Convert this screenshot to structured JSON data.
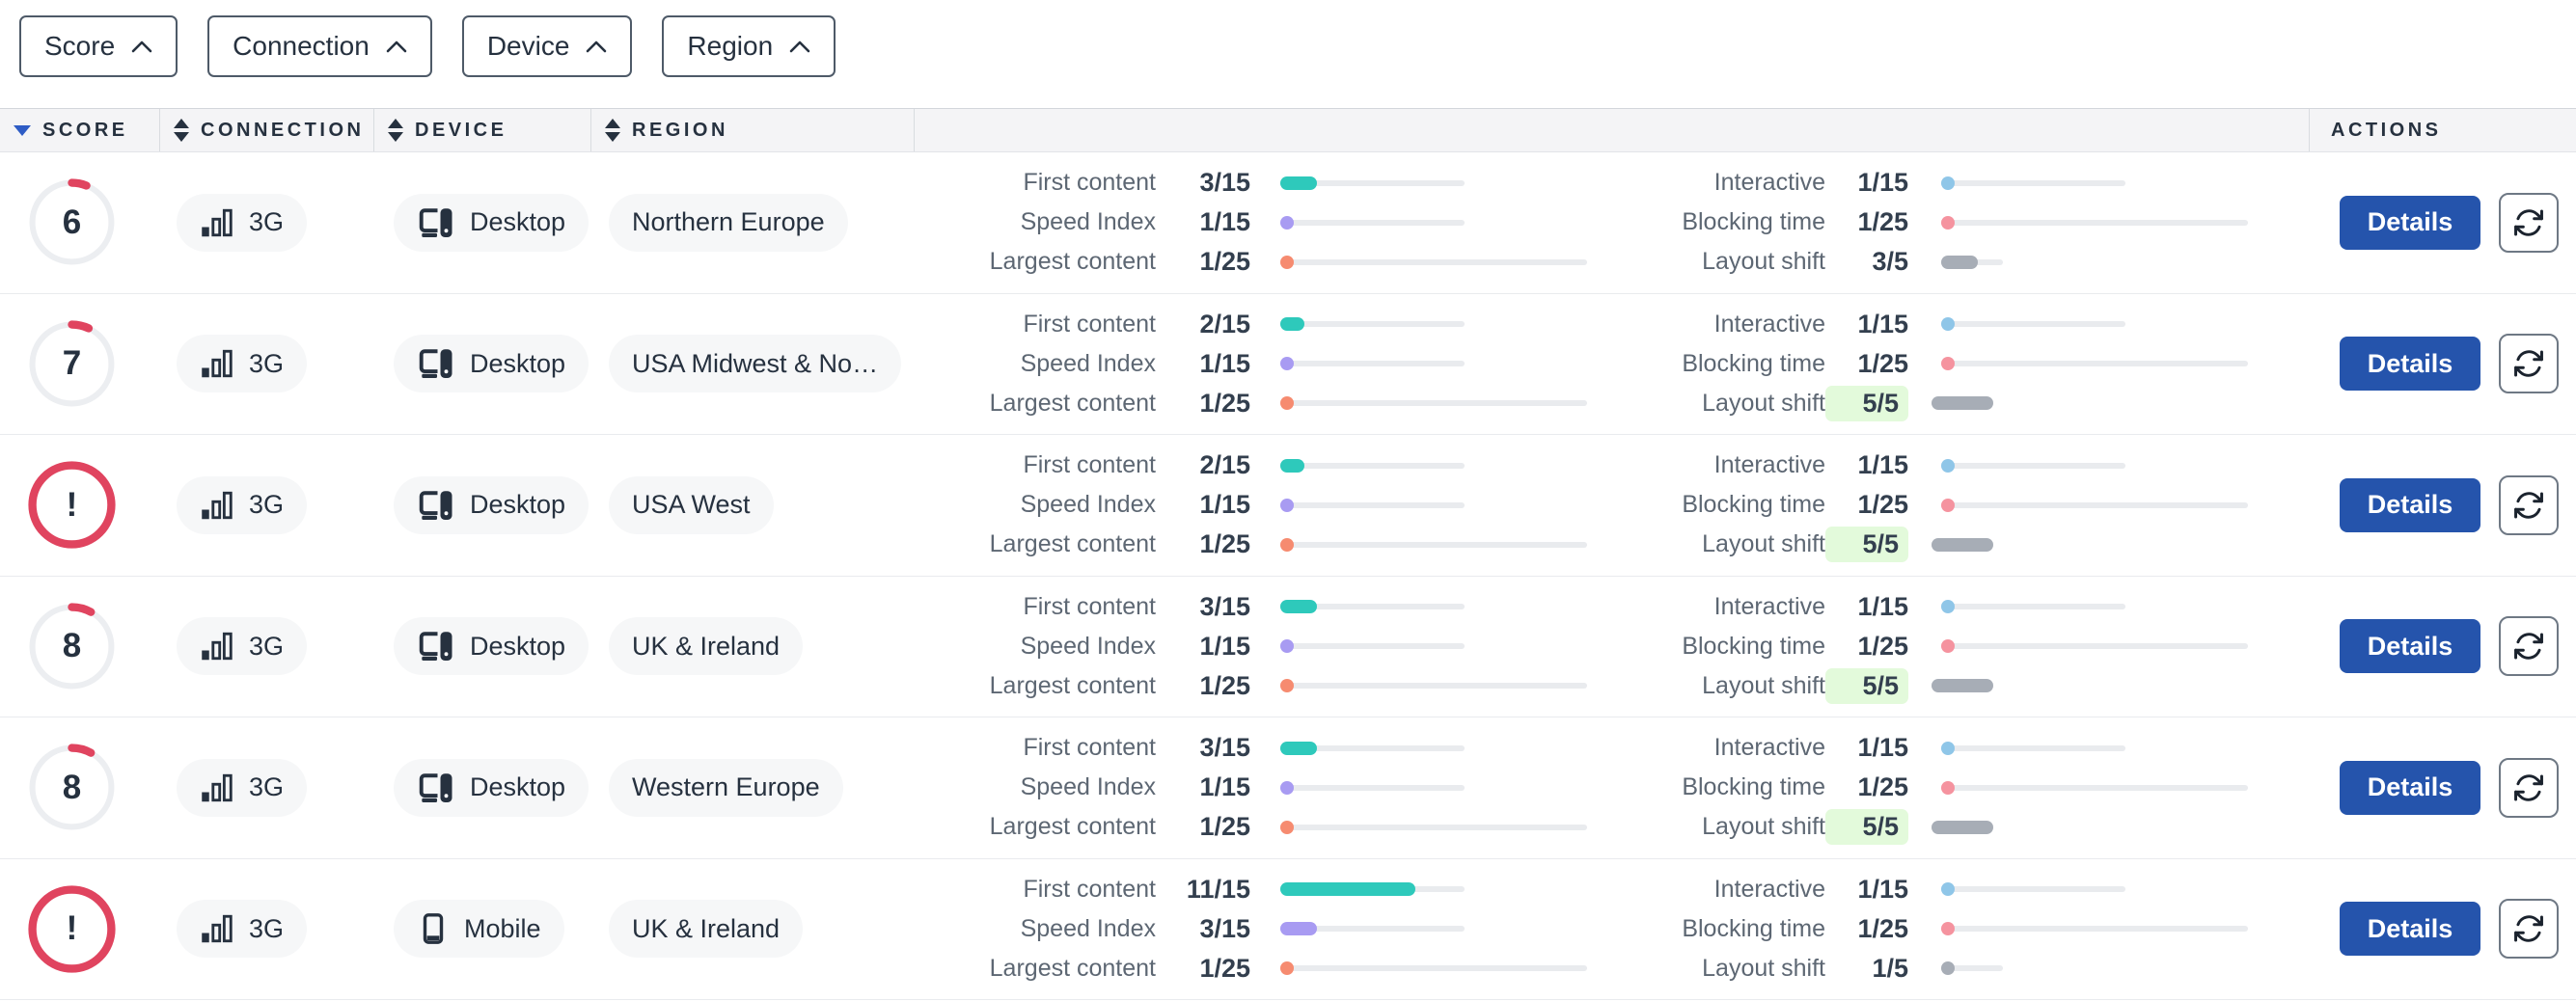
{
  "filters": [
    {
      "label": "Score"
    },
    {
      "label": "Connection"
    },
    {
      "label": "Device"
    },
    {
      "label": "Region"
    }
  ],
  "columns": {
    "score": "Score",
    "connection": "Connection",
    "device": "Device",
    "region": "Region",
    "actions": "Actions"
  },
  "sort": {
    "active_column": "score",
    "direction": "desc"
  },
  "metric_labels": {
    "first_content": "First content",
    "speed_index": "Speed Index",
    "largest_content": "Largest content",
    "interactive": "Interactive",
    "blocking_time": "Blocking time",
    "layout_shift": "Layout shift"
  },
  "metrics_layout": {
    "left": [
      "first_content",
      "speed_index",
      "largest_content"
    ],
    "right": [
      "interactive",
      "blocking_time",
      "layout_shift"
    ]
  },
  "actions": {
    "details_label": "Details",
    "refresh_icon": "refresh-icon"
  },
  "colors": {
    "metrics": {
      "first_content": "#2ec9bb",
      "speed_index": "#a89bf2",
      "largest_content": "#f68b70",
      "interactive": "#8fc6e8",
      "blocking_time": "#f5939f",
      "layout_shift": "#a7adb6"
    },
    "score_ring_red": "#e0445f",
    "score_ring_track": "#eceef1",
    "details_button": "#2554ac",
    "good_badge_bg": "#e3fadb",
    "track": "#e9ebee"
  },
  "rows": [
    {
      "score": "6",
      "score_value": 6,
      "connection": "3G",
      "device": "Desktop",
      "device_type": "desktop",
      "region": "Northern Europe",
      "metrics": {
        "first_content": {
          "value": 3,
          "max": 15,
          "display": "3/15"
        },
        "speed_index": {
          "value": 1,
          "max": 15,
          "display": "1/15"
        },
        "largest_content": {
          "value": 1,
          "max": 25,
          "display": "1/25"
        },
        "interactive": {
          "value": 1,
          "max": 15,
          "display": "1/15"
        },
        "blocking_time": {
          "value": 1,
          "max": 25,
          "display": "1/25"
        },
        "layout_shift": {
          "value": 3,
          "max": 5,
          "display": "3/5",
          "highlight": false
        }
      }
    },
    {
      "score": "7",
      "score_value": 7,
      "connection": "3G",
      "device": "Desktop",
      "device_type": "desktop",
      "region": "USA Midwest & No…",
      "metrics": {
        "first_content": {
          "value": 2,
          "max": 15,
          "display": "2/15"
        },
        "speed_index": {
          "value": 1,
          "max": 15,
          "display": "1/15"
        },
        "largest_content": {
          "value": 1,
          "max": 25,
          "display": "1/25"
        },
        "interactive": {
          "value": 1,
          "max": 15,
          "display": "1/15"
        },
        "blocking_time": {
          "value": 1,
          "max": 25,
          "display": "1/25"
        },
        "layout_shift": {
          "value": 5,
          "max": 5,
          "display": "5/5",
          "highlight": true
        }
      }
    },
    {
      "score": "!",
      "score_value": null,
      "connection": "3G",
      "device": "Desktop",
      "device_type": "desktop",
      "region": "USA West",
      "metrics": {
        "first_content": {
          "value": 2,
          "max": 15,
          "display": "2/15"
        },
        "speed_index": {
          "value": 1,
          "max": 15,
          "display": "1/15"
        },
        "largest_content": {
          "value": 1,
          "max": 25,
          "display": "1/25"
        },
        "interactive": {
          "value": 1,
          "max": 15,
          "display": "1/15"
        },
        "blocking_time": {
          "value": 1,
          "max": 25,
          "display": "1/25"
        },
        "layout_shift": {
          "value": 5,
          "max": 5,
          "display": "5/5",
          "highlight": true
        }
      }
    },
    {
      "score": "8",
      "score_value": 8,
      "connection": "3G",
      "device": "Desktop",
      "device_type": "desktop",
      "region": "UK & Ireland",
      "metrics": {
        "first_content": {
          "value": 3,
          "max": 15,
          "display": "3/15"
        },
        "speed_index": {
          "value": 1,
          "max": 15,
          "display": "1/15"
        },
        "largest_content": {
          "value": 1,
          "max": 25,
          "display": "1/25"
        },
        "interactive": {
          "value": 1,
          "max": 15,
          "display": "1/15"
        },
        "blocking_time": {
          "value": 1,
          "max": 25,
          "display": "1/25"
        },
        "layout_shift": {
          "value": 5,
          "max": 5,
          "display": "5/5",
          "highlight": true
        }
      }
    },
    {
      "score": "8",
      "score_value": 8,
      "connection": "3G",
      "device": "Desktop",
      "device_type": "desktop",
      "region": "Western Europe",
      "metrics": {
        "first_content": {
          "value": 3,
          "max": 15,
          "display": "3/15"
        },
        "speed_index": {
          "value": 1,
          "max": 15,
          "display": "1/15"
        },
        "largest_content": {
          "value": 1,
          "max": 25,
          "display": "1/25"
        },
        "interactive": {
          "value": 1,
          "max": 15,
          "display": "1/15"
        },
        "blocking_time": {
          "value": 1,
          "max": 25,
          "display": "1/25"
        },
        "layout_shift": {
          "value": 5,
          "max": 5,
          "display": "5/5",
          "highlight": true
        }
      }
    },
    {
      "score": "!",
      "score_value": null,
      "connection": "3G",
      "device": "Mobile",
      "device_type": "mobile",
      "region": "UK & Ireland",
      "metrics": {
        "first_content": {
          "value": 11,
          "max": 15,
          "display": "11/15"
        },
        "speed_index": {
          "value": 3,
          "max": 15,
          "display": "3/15"
        },
        "largest_content": {
          "value": 1,
          "max": 25,
          "display": "1/25"
        },
        "interactive": {
          "value": 1,
          "max": 15,
          "display": "1/15"
        },
        "blocking_time": {
          "value": 1,
          "max": 25,
          "display": "1/25"
        },
        "layout_shift": {
          "value": 1,
          "max": 5,
          "display": "1/5",
          "highlight": false
        }
      }
    }
  ]
}
